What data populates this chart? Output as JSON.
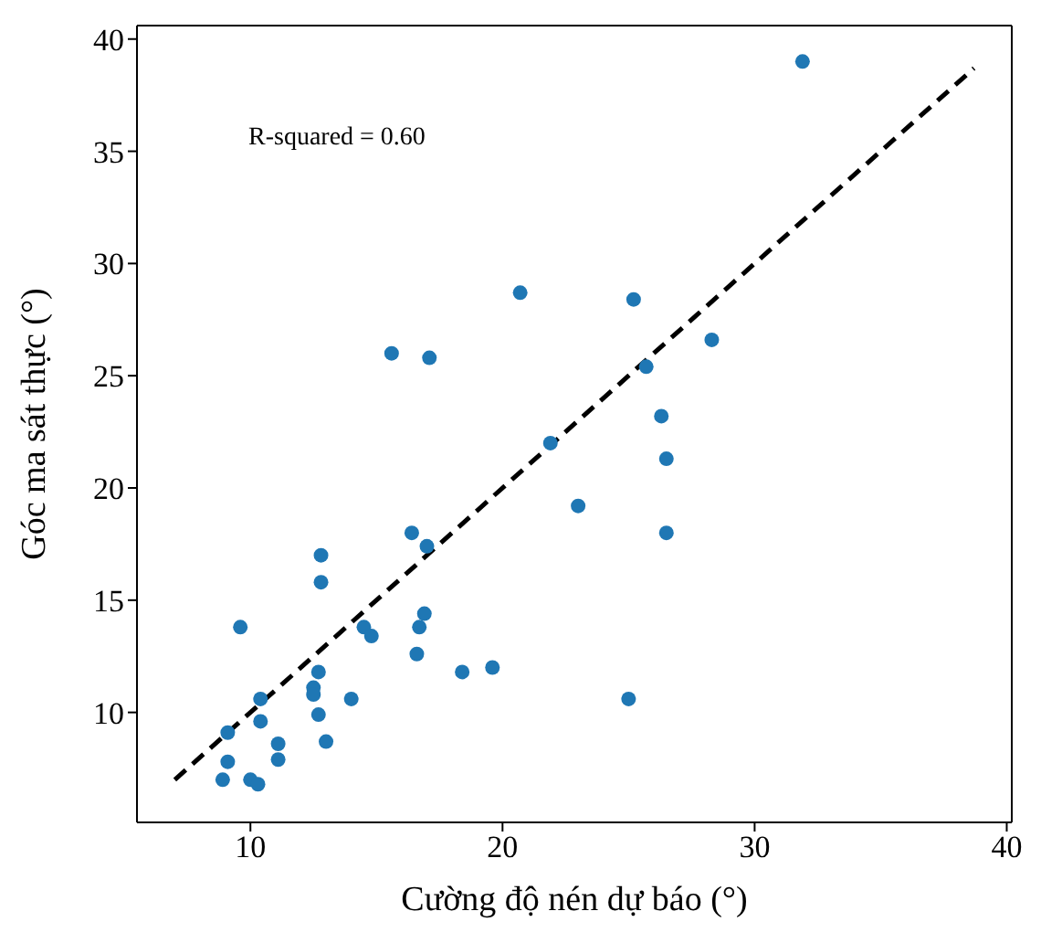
{
  "chart_data": {
    "type": "scatter",
    "xlabel": "Cường độ nén dự báo (°)",
    "ylabel": "Góc ma sát thực (°)",
    "annotations": [
      "R-squared = 0.60"
    ],
    "xlim": [
      5.5,
      40.2
    ],
    "ylim": [
      5.1,
      40.6
    ],
    "xticks": [
      10,
      20,
      30,
      40
    ],
    "yticks": [
      10,
      15,
      20,
      25,
      30,
      35,
      40
    ],
    "marker": "circle",
    "series": [
      {
        "type": "scatter",
        "color": "#1f77b4",
        "x": [
          31.9,
          20.7,
          25.2,
          15.6,
          17.1,
          28.3,
          25.7,
          26.3,
          26.5,
          23.0,
          26.5,
          25.0,
          21.9,
          16.4,
          17.0,
          12.8,
          12.8,
          9.6,
          14.5,
          14.8,
          16.9,
          16.7,
          16.6,
          18.4,
          19.6,
          12.7,
          12.5,
          12.5,
          14.0,
          12.7,
          13.0,
          10.4,
          10.4,
          9.1,
          11.1,
          11.1,
          9.1,
          8.9,
          10.0,
          10.3
        ],
        "values": [
          39.0,
          28.7,
          28.4,
          26.0,
          25.8,
          26.6,
          25.4,
          23.2,
          21.3,
          19.2,
          18.0,
          10.6,
          22.0,
          18.0,
          17.4,
          17.0,
          15.8,
          13.8,
          13.8,
          13.4,
          14.4,
          13.8,
          12.6,
          11.8,
          12.0,
          11.8,
          11.1,
          10.8,
          10.6,
          9.9,
          8.7,
          10.6,
          9.6,
          9.1,
          8.6,
          7.9,
          7.8,
          7.0,
          7.0,
          6.8
        ]
      },
      {
        "type": "line",
        "color": "#000000",
        "line_style": "dashed",
        "marker": "none",
        "x": [
          7.0,
          38.7
        ],
        "values": [
          7.0,
          38.7
        ]
      }
    ]
  }
}
